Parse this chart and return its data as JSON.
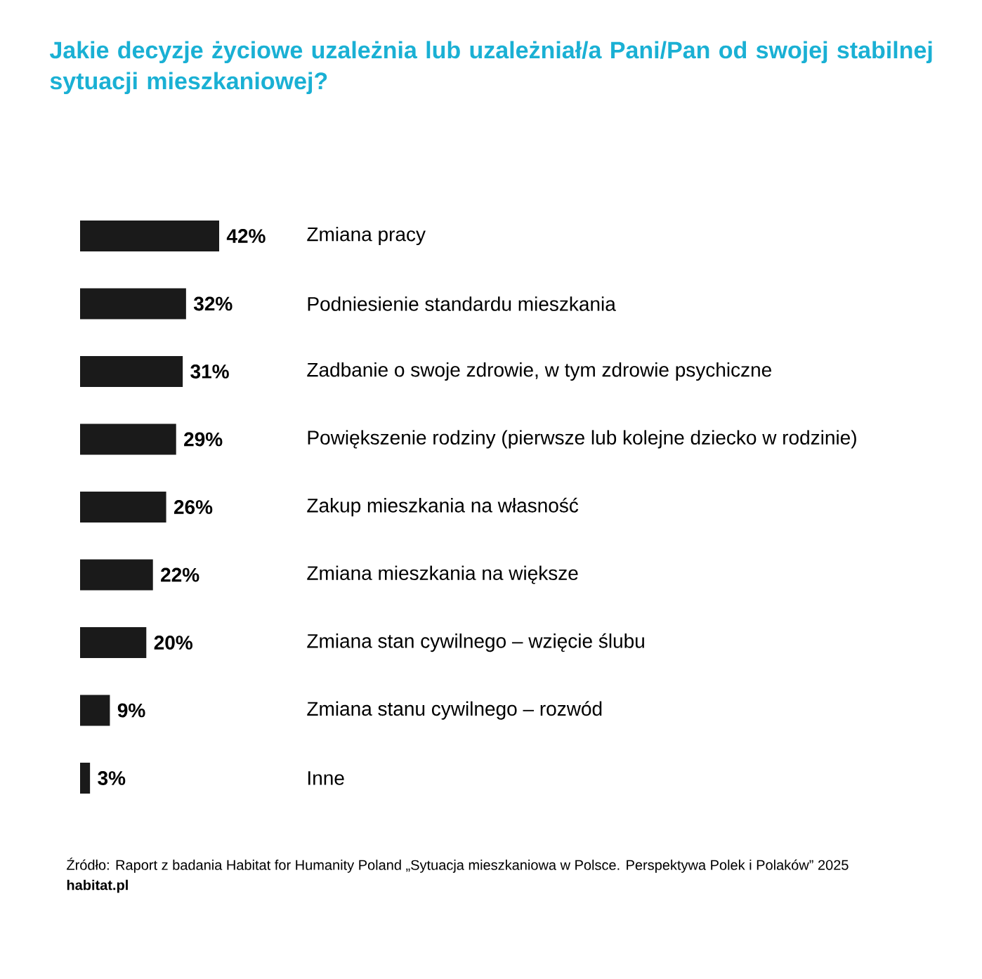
{
  "chart_data": {
    "type": "bar",
    "orientation": "horizontal",
    "title": "Jakie decyzje życiowe uzależnia lub uzależniał/a Pani/Pan od swojej stabilnej sytuacji mieszkaniowej?",
    "categories": [
      "Zmiana pracy",
      "Podniesienie standardu mieszkania",
      "Zadbanie o swoje zdrowie, w tym zdrowie psychiczne",
      "Powiększenie rodziny (pierwsze lub kolejne dziecko w rodzinie)",
      "Zakup mieszkania na własność",
      "Zmiana mieszkania na większe",
      "Zmiana stan cywilnego – wzięcie ślubu",
      "Zmiana stanu cywilnego – rozwód",
      "Inne"
    ],
    "values": [
      42,
      32,
      31,
      29,
      26,
      22,
      20,
      9,
      3
    ],
    "value_labels": [
      "42%",
      "32%",
      "31%",
      "29%",
      "26%",
      "22%",
      "20%",
      "9%",
      "3%"
    ],
    "color": "#1a1a1a",
    "annotations": [
      "Źródło: Raport z badania Habitat for Humanity Poland „Sytuacja mieszkaniowa w Polsce. Perspektywa Polek i Polaków” 2025",
      "habitat.pl"
    ]
  }
}
